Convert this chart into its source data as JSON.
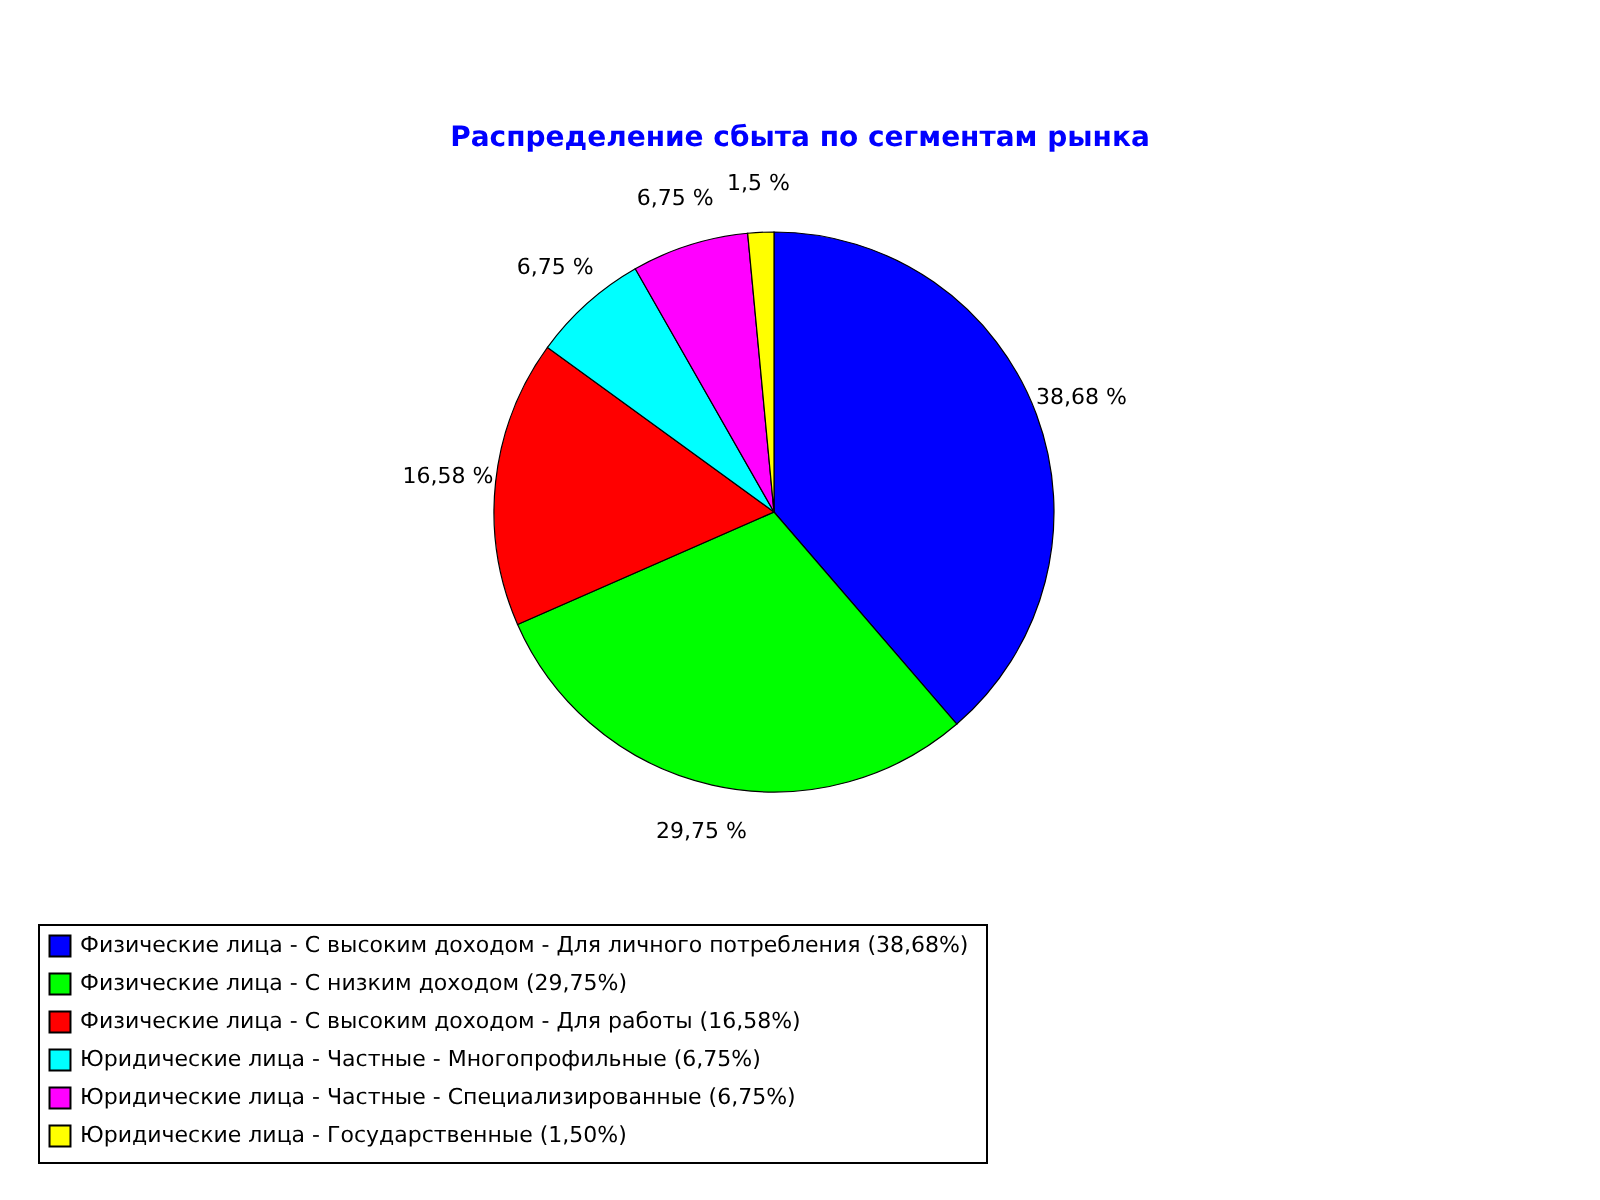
{
  "chart_data": {
    "type": "pie",
    "title": "Распределение сбыта по сегментам рынка",
    "categories": [
      "Физические лица - С высоким доходом - Для личного потребления  (38,68%)",
      "Физические лица - С низким доходом  (29,75%)",
      "Физические лица - С высоким доходом - Для работы  (16,58%)",
      "Юридические лица - Частные - Многопрофильные  (6,75%)",
      "Юридические лица - Частные - Специализированные  (6,75%)",
      "Юридические лица - Государственные  (1,50%)"
    ],
    "values": [
      38.68,
      29.75,
      16.58,
      6.75,
      6.75,
      1.5
    ],
    "colors": [
      "#0000ff",
      "#00ff00",
      "#ff0000",
      "#00ffff",
      "#ff00ff",
      "#ffff00"
    ],
    "value_labels": [
      "38,68 %",
      "29,75 %",
      "16,58 %",
      "6,75 %",
      "6,75 %",
      "1,5 %"
    ],
    "legend": "bottom left"
  }
}
